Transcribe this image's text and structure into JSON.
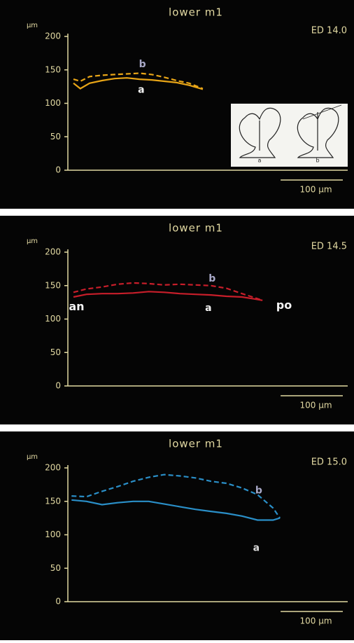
{
  "chart_data": [
    {
      "type": "line",
      "title": "lower m1",
      "y_label": "µm",
      "stage": "ED 14.0",
      "x": [
        9,
        20,
        35,
        55,
        75,
        95,
        115,
        135,
        155,
        175,
        195,
        217
      ],
      "series": [
        {
          "name": "a",
          "color": "#e8a517",
          "line_style": "solid",
          "label_color": "#f2f2f2",
          "values": [
            130,
            122,
            130,
            134,
            137,
            138,
            136,
            135,
            133,
            131,
            127,
            121
          ]
        },
        {
          "name": "b",
          "color": "#e8a517",
          "line_style": "dashed",
          "label_color": "#a9a9c8",
          "values": [
            136,
            133,
            140,
            142,
            143,
            144,
            145,
            143,
            139,
            134,
            130,
            122
          ]
        }
      ],
      "xlim": [
        0,
        450
      ],
      "ylim": [
        0,
        200
      ],
      "yticks": [
        0,
        50,
        100,
        150,
        200
      ],
      "scale_bar": {
        "value": 100,
        "label": "100 µm"
      },
      "inset_labels": [
        "a",
        "b"
      ]
    },
    {
      "type": "line",
      "title": "lower m1",
      "y_label": "µm",
      "stage": "ED 14.5",
      "x": [
        9,
        30,
        55,
        80,
        105,
        130,
        155,
        180,
        205,
        230,
        255,
        280,
        300,
        313
      ],
      "series": [
        {
          "name": "a",
          "color": "#c81e2a",
          "line_style": "solid",
          "label_color": "#f2f2f2",
          "values": [
            133,
            137,
            138,
            138,
            139,
            141,
            140,
            138,
            137,
            136,
            134,
            133,
            130,
            128
          ]
        },
        {
          "name": "b",
          "color": "#c81e2a",
          "line_style": "dashed",
          "label_color": "#a9a9c8",
          "values": [
            140,
            145,
            148,
            152,
            154,
            153,
            151,
            152,
            151,
            150,
            146,
            138,
            132,
            128
          ]
        }
      ],
      "xlim": [
        0,
        450
      ],
      "ylim": [
        0,
        200
      ],
      "yticks": [
        0,
        50,
        100,
        150,
        200
      ],
      "scale_bar": {
        "value": 100,
        "label": "100 µm"
      },
      "annotations": [
        "an",
        "po"
      ]
    },
    {
      "type": "line",
      "title": "lower m1",
      "y_label": "µm",
      "stage": "ED 15.0",
      "x": [
        6,
        30,
        55,
        80,
        105,
        130,
        155,
        180,
        205,
        230,
        255,
        280,
        305,
        330,
        341
      ],
      "series": [
        {
          "name": "a",
          "color": "#2a8fc8",
          "line_style": "solid",
          "label_color": "#d8d8d8",
          "values": [
            152,
            150,
            145,
            148,
            150,
            150,
            146,
            142,
            138,
            135,
            132,
            128,
            122,
            122,
            125
          ]
        },
        {
          "name": "b",
          "color": "#2a8fc8",
          "line_style": "dashed",
          "label_color": "#a9a9c8",
          "values": [
            158,
            157,
            165,
            172,
            180,
            186,
            190,
            188,
            185,
            180,
            177,
            170,
            160,
            140,
            125
          ]
        }
      ],
      "xlim": [
        0,
        450
      ],
      "ylim": [
        0,
        200
      ],
      "yticks": [
        0,
        50,
        100,
        150,
        200
      ],
      "scale_bar": {
        "value": 100,
        "label": "100 µm"
      }
    }
  ]
}
